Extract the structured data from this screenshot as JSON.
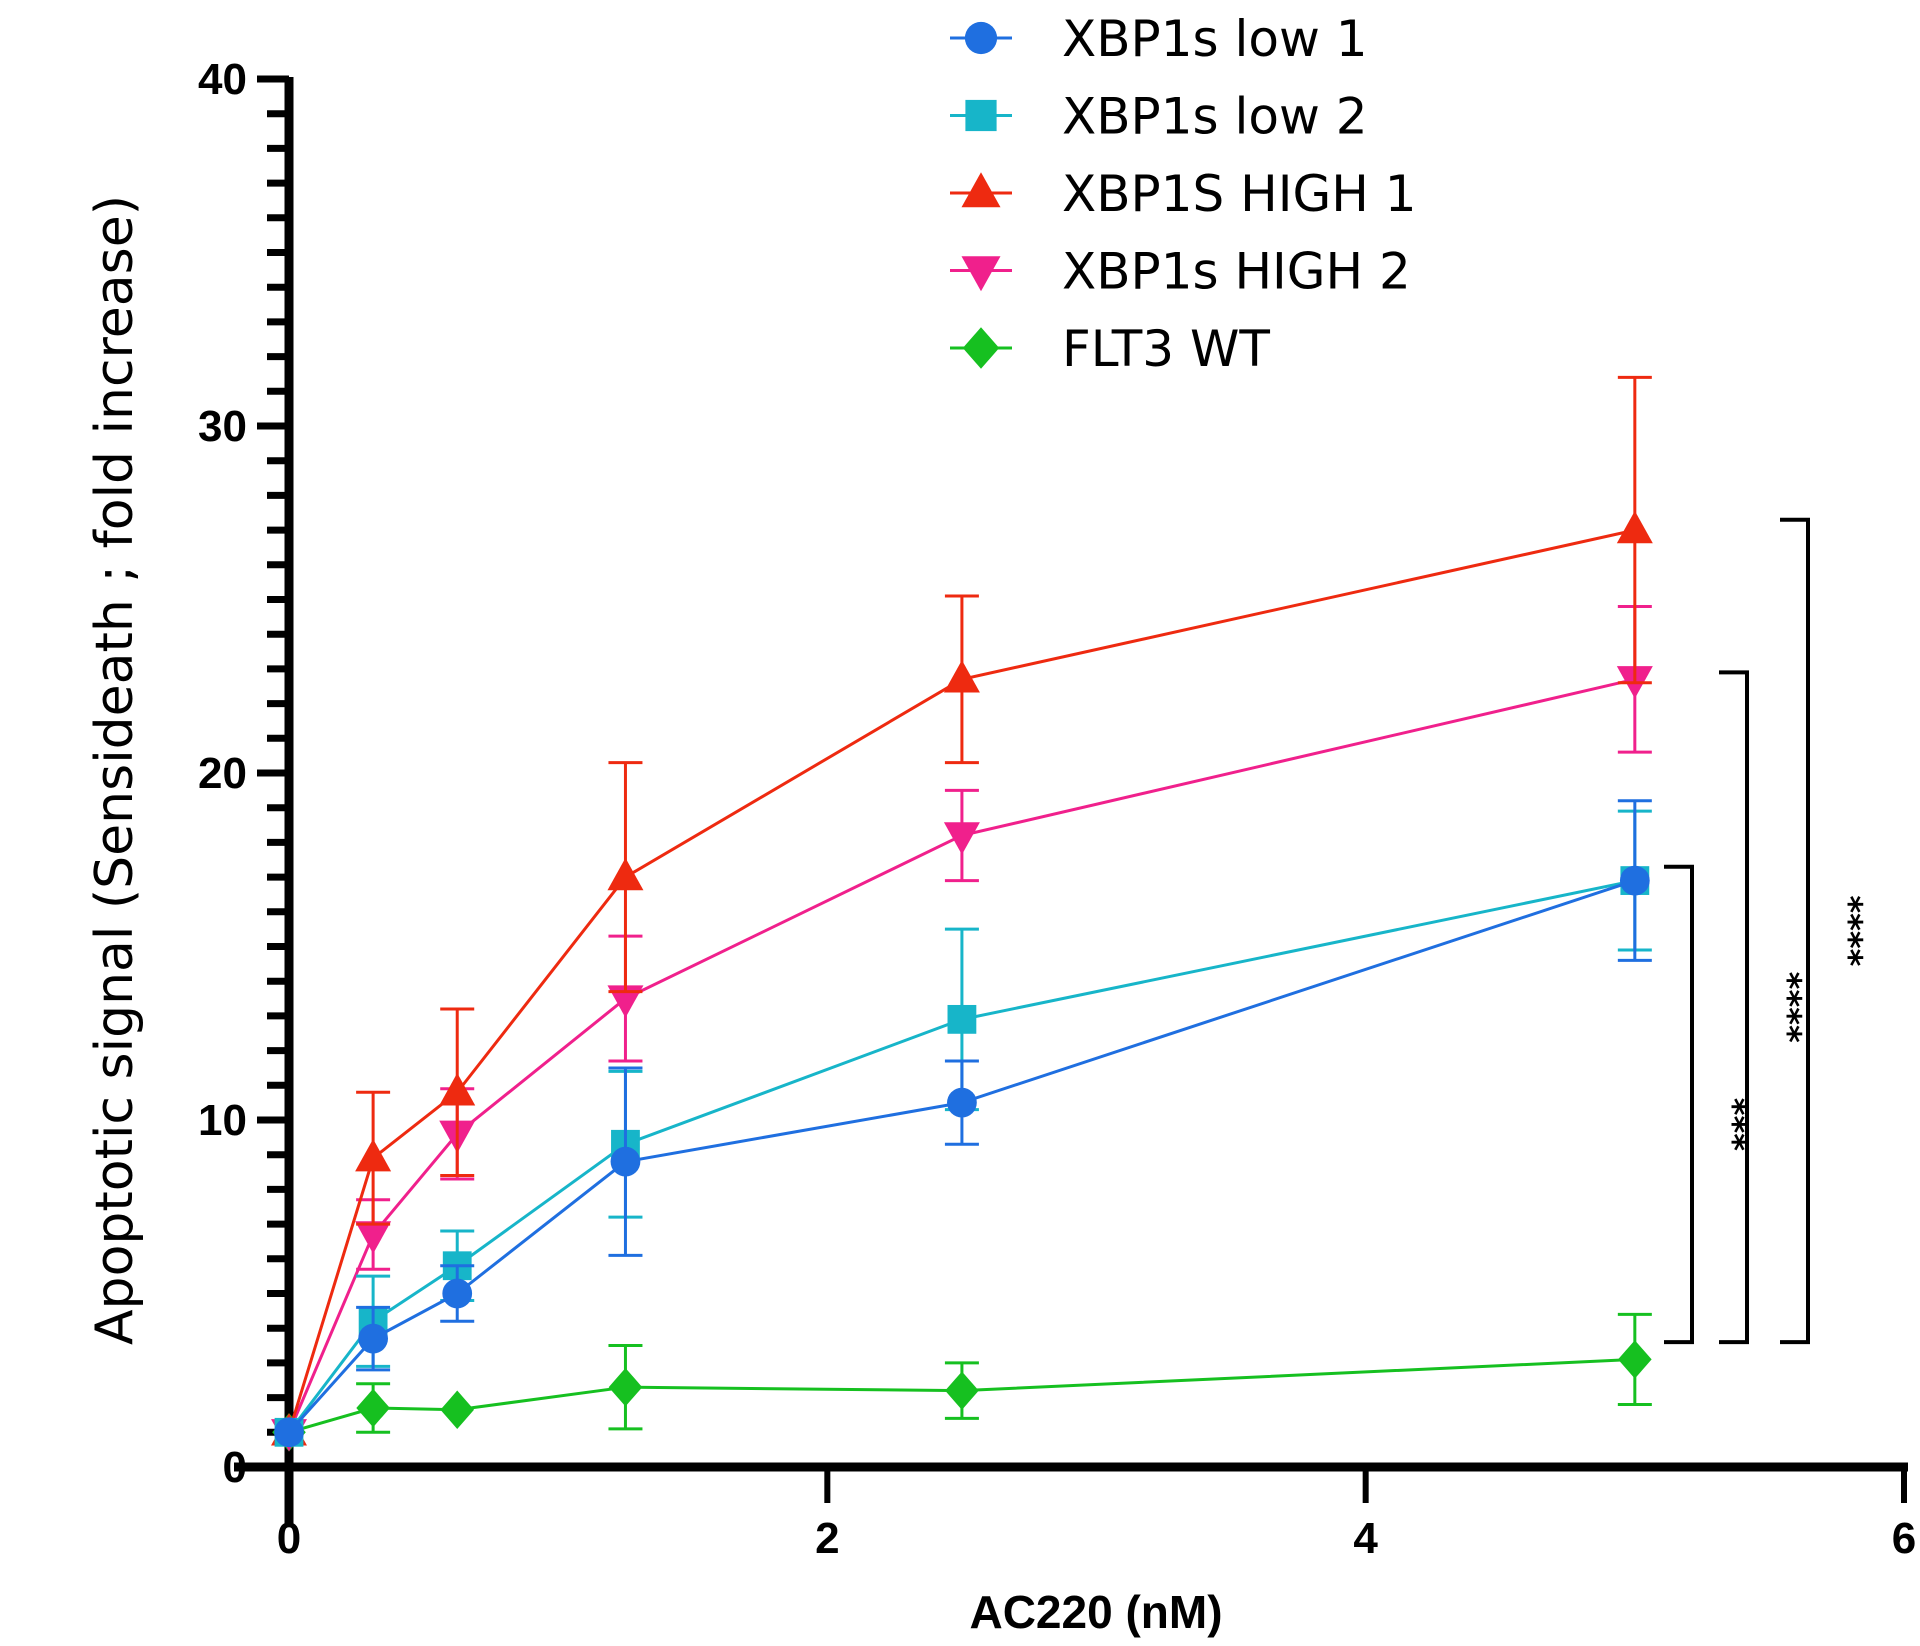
{
  "chart_data": {
    "type": "line",
    "title": "",
    "xlabel": "AC220 (nM)",
    "ylabel": "Apoptotic signal (Sensideath ; fold increase)",
    "xlim": [
      0,
      6
    ],
    "ylim": [
      0,
      40
    ],
    "xticks": [
      0,
      2,
      4,
      6
    ],
    "xtick_labels": [
      "0",
      "2",
      "4",
      "6"
    ],
    "yticks": [
      0,
      10,
      20,
      30,
      40
    ],
    "ytick_labels": [
      "0",
      "10",
      "20",
      "30",
      "40"
    ],
    "y_minor_step": 1,
    "grid": false,
    "legend_position": "top-right",
    "x": [
      0,
      0.3125,
      0.625,
      1.25,
      2.5,
      5
    ],
    "series": [
      {
        "name": "XBP1s low 1",
        "color": "#1f6fe0",
        "marker": "circle",
        "values": [
          1.0,
          3.7,
          5.0,
          8.8,
          10.5,
          16.9
        ],
        "errors": [
          0,
          0.9,
          0.8,
          2.7,
          1.2,
          2.3
        ]
      },
      {
        "name": "XBP1s low 2",
        "color": "#17b5c9",
        "marker": "square",
        "values": [
          1.0,
          4.2,
          5.8,
          9.3,
          12.9,
          16.9
        ],
        "errors": [
          0,
          1.3,
          1.0,
          2.1,
          2.6,
          2.0
        ]
      },
      {
        "name": "XBP1S HIGH 1",
        "color": "#ee2a10",
        "marker": "triangle-up",
        "values": [
          1.0,
          8.9,
          10.8,
          17.0,
          22.7,
          27.0
        ],
        "errors": [
          0,
          1.9,
          2.4,
          3.3,
          2.4,
          4.4
        ]
      },
      {
        "name": "XBP1s HIGH 2",
        "color": "#f0208c",
        "marker": "triangle-down",
        "values": [
          1.0,
          6.7,
          9.6,
          13.5,
          18.2,
          22.7
        ],
        "errors": [
          0,
          1.0,
          1.3,
          1.8,
          1.3,
          2.1
        ]
      },
      {
        "name": "FLT3 WT",
        "color": "#16c020",
        "marker": "diamond",
        "values": [
          1.0,
          1.7,
          1.65,
          2.3,
          2.2,
          3.1
        ],
        "errors": [
          0,
          0.7,
          0,
          1.2,
          0.8,
          1.3
        ]
      }
    ],
    "annotations": [
      {
        "type": "significance-bracket",
        "label": "***",
        "y_from": 3.6,
        "y_to": 17.3
      },
      {
        "type": "significance-bracket",
        "label": "****",
        "y_from": 3.6,
        "y_to": 22.9
      },
      {
        "type": "significance-bracket",
        "label": "****",
        "y_from": 3.6,
        "y_to": 27.3
      }
    ]
  }
}
